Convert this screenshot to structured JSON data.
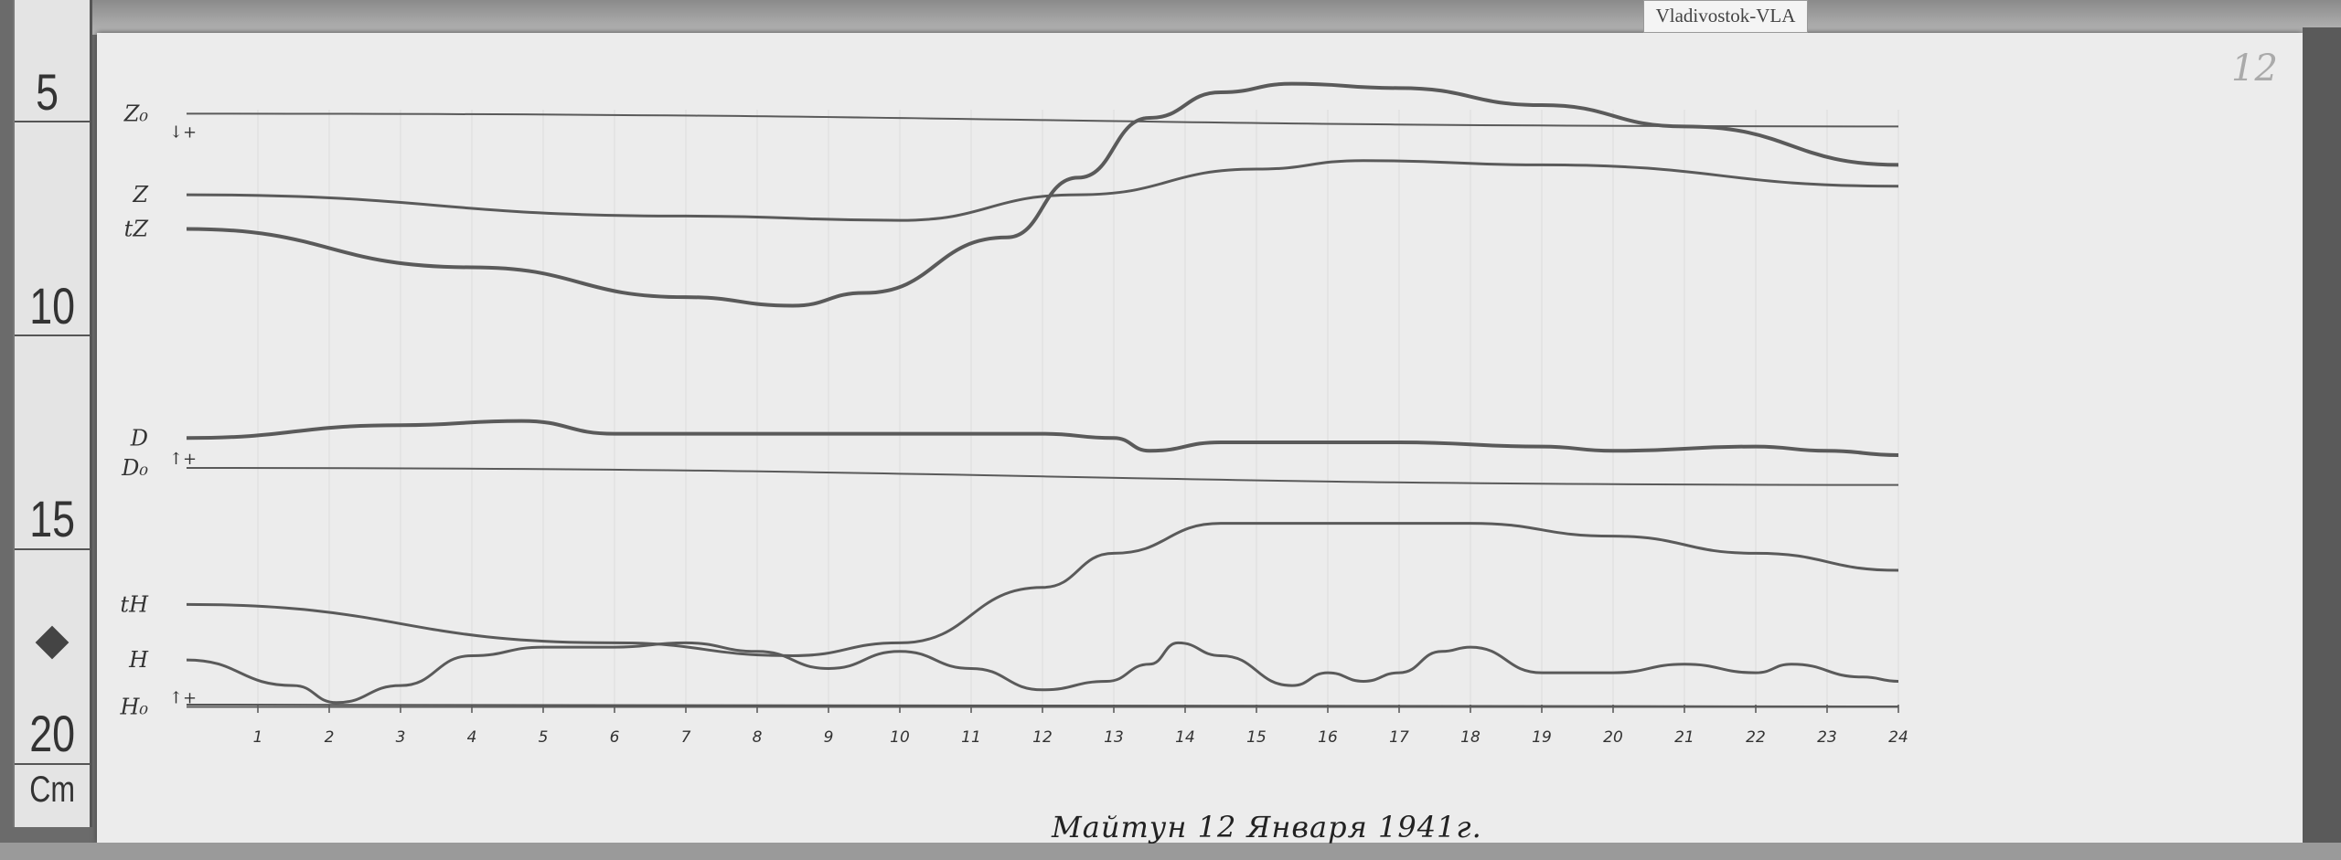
{
  "station_label": "Vladivostok-VLA",
  "page_number": "12",
  "caption": "Майтун 12 Января 1941г.",
  "ruler": {
    "unit": "Cm",
    "labels": [
      "5",
      "10",
      "15",
      "20"
    ]
  },
  "chart_data": {
    "type": "line",
    "title": "",
    "xlabel": "",
    "ylabel": "",
    "x_ticks": [
      "1",
      "2",
      "3",
      "4",
      "5",
      "6",
      "7",
      "8",
      "9",
      "10",
      "11",
      "12",
      "13",
      "14",
      "15",
      "16",
      "17",
      "18",
      "19",
      "20",
      "21",
      "22",
      "23",
      "24"
    ],
    "xlim": [
      0,
      24
    ],
    "y_unit_note": "Cm",
    "ylim": [
      4.5,
      20
    ],
    "y_inverted": true,
    "colors": {
      "trace": "#5a5a5a",
      "paper": "#ececec"
    },
    "series": [
      {
        "name": "Z₀",
        "sign": "↓+",
        "x": [
          0,
          24
        ],
        "y": [
          5.5,
          5.8
        ]
      },
      {
        "name": "Z",
        "x": [
          0,
          7,
          10,
          12.5,
          15,
          16.5,
          19,
          24
        ],
        "y": [
          7.4,
          7.9,
          8.0,
          7.4,
          6.8,
          6.6,
          6.7,
          7.2
        ]
      },
      {
        "name": "tZ",
        "x": [
          0,
          4,
          7,
          8.5,
          9.5,
          11.5,
          12.5,
          13.5,
          14.5,
          15.5,
          17,
          19,
          21,
          24
        ],
        "y": [
          8.2,
          9.1,
          9.8,
          10.0,
          9.7,
          8.4,
          7.0,
          5.6,
          5.0,
          4.8,
          4.9,
          5.3,
          5.8,
          6.7
        ]
      },
      {
        "name": "D",
        "x": [
          0,
          3,
          4.7,
          6,
          9,
          12,
          13,
          13.5,
          14.5,
          17,
          19,
          20,
          22,
          23,
          24
        ],
        "y": [
          13.1,
          12.8,
          12.7,
          13.0,
          13.0,
          13.0,
          13.1,
          13.4,
          13.2,
          13.2,
          13.3,
          13.4,
          13.3,
          13.4,
          13.5
        ]
      },
      {
        "name": "D₀",
        "sign": "↑+",
        "x": [
          0,
          24
        ],
        "y": [
          13.8,
          14.2
        ]
      },
      {
        "name": "tH",
        "x": [
          0,
          6,
          8.5,
          10,
          12,
          13,
          14.5,
          16,
          18,
          20,
          22,
          24
        ],
        "y": [
          17.0,
          17.9,
          18.2,
          17.9,
          16.6,
          15.8,
          15.1,
          15.1,
          15.1,
          15.4,
          15.8,
          16.2
        ]
      },
      {
        "name": "H",
        "x": [
          0,
          1.5,
          2.1,
          3,
          4,
          5,
          6,
          7,
          8,
          9,
          10,
          11,
          12,
          12.9,
          13.5,
          13.9,
          14.5,
          15.5,
          16,
          16.5,
          17,
          17.6,
          18,
          19,
          20,
          21,
          22,
          22.5,
          23.5,
          24
        ],
        "y": [
          18.3,
          18.9,
          19.3,
          18.9,
          18.2,
          18.0,
          18.0,
          17.9,
          18.1,
          18.5,
          18.1,
          18.5,
          19.0,
          18.8,
          18.4,
          17.9,
          18.2,
          18.9,
          18.6,
          18.8,
          18.6,
          18.1,
          18.0,
          18.6,
          18.6,
          18.4,
          18.6,
          18.4,
          18.7,
          18.8
        ]
      },
      {
        "name": "H₀",
        "sign": "↑+",
        "x": [
          0,
          24
        ],
        "y": [
          19.4,
          19.4
        ]
      }
    ]
  }
}
